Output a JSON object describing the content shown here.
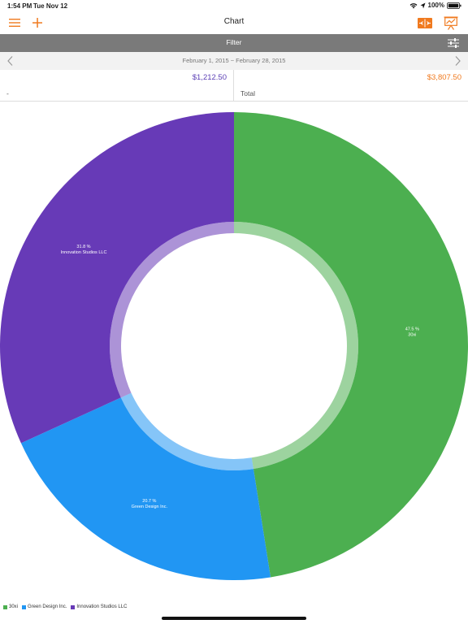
{
  "status_bar": {
    "time": "1:54 PM",
    "date": "Tue Nov 12",
    "battery": "100%"
  },
  "nav": {
    "title": "Chart",
    "icons": [
      "menu-icon",
      "add-icon",
      "split-view-icon",
      "presentation-chart-icon"
    ]
  },
  "filter": {
    "label": "Filter",
    "icon": "sliders-icon"
  },
  "date_range": {
    "label": "February 1, 2015 ~ February 28, 2015"
  },
  "summary": {
    "left": {
      "amount": "$1,212.50",
      "label": "-",
      "color": "#5b3fb5"
    },
    "right": {
      "amount": "$3,807.50",
      "label": "Total",
      "color": "#f07a1f"
    }
  },
  "colors": {
    "accent": "#f07a1f",
    "filter_bg": "#7a7a7a"
  },
  "chart_data": {
    "type": "pie",
    "style": "donut",
    "slices": [
      {
        "name": "30xi",
        "percent": 47.5,
        "label": "47.5 %",
        "color": "#4caf50"
      },
      {
        "name": "Green Design Inc.",
        "percent": 20.7,
        "label": "20.7 %",
        "color": "#2196f3"
      },
      {
        "name": "Innovation Studios LLC",
        "percent": 31.8,
        "label": "31.8 %",
        "color": "#673ab7"
      }
    ],
    "legend": [
      "30xi",
      "Green Design Inc.",
      "Innovation Studios LLC"
    ],
    "legend_position": "bottom-left"
  }
}
